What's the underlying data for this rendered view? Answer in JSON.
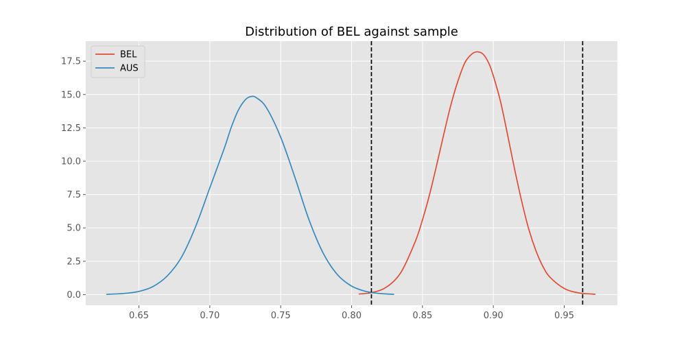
{
  "chart_data": {
    "type": "line",
    "title": "Distribution of BEL against sample",
    "xlabel": "",
    "ylabel": "",
    "xlim": [
      0.6125,
      0.9875
    ],
    "ylim": [
      -0.8,
      19.0
    ],
    "x_ticks": [
      0.65,
      0.7,
      0.75,
      0.8,
      0.85,
      0.9,
      0.95
    ],
    "x_tick_labels": [
      "0.65",
      "0.70",
      "0.75",
      "0.80",
      "0.85",
      "0.90",
      "0.95"
    ],
    "y_ticks": [
      0.0,
      2.5,
      5.0,
      7.5,
      10.0,
      12.5,
      15.0,
      17.5
    ],
    "y_tick_labels": [
      "0.0",
      "2.5",
      "5.0",
      "7.5",
      "10.0",
      "12.5",
      "15.0",
      "17.5"
    ],
    "grid": true,
    "legend_position": "top-left",
    "series": [
      {
        "name": "BEL",
        "color": "#E24A33",
        "x": [
          0.805,
          0.815,
          0.825,
          0.835,
          0.845,
          0.85,
          0.855,
          0.86,
          0.865,
          0.87,
          0.875,
          0.88,
          0.885,
          0.889,
          0.893,
          0.897,
          0.9,
          0.905,
          0.91,
          0.915,
          0.92,
          0.925,
          0.93,
          0.935,
          0.94,
          0.95,
          0.96,
          0.972
        ],
        "y": [
          0.04,
          0.17,
          0.59,
          1.7,
          4.0,
          5.6,
          7.5,
          9.7,
          12.0,
          14.2,
          16.0,
          17.4,
          18.05,
          18.2,
          18.0,
          17.3,
          16.4,
          14.5,
          12.0,
          9.4,
          7.0,
          4.9,
          3.3,
          2.1,
          1.3,
          0.46,
          0.13,
          0.03
        ]
      },
      {
        "name": "AUS",
        "color": "#348ABD",
        "x": [
          0.627,
          0.64,
          0.65,
          0.66,
          0.67,
          0.68,
          0.69,
          0.7,
          0.71,
          0.715,
          0.72,
          0.725,
          0.729,
          0.733,
          0.74,
          0.75,
          0.76,
          0.77,
          0.78,
          0.79,
          0.8,
          0.81,
          0.82,
          0.83
        ],
        "y": [
          0.02,
          0.09,
          0.24,
          0.61,
          1.4,
          2.8,
          5.1,
          8.0,
          10.9,
          12.5,
          13.8,
          14.6,
          14.85,
          14.75,
          14.0,
          11.8,
          8.8,
          5.6,
          3.1,
          1.5,
          0.64,
          0.24,
          0.08,
          0.02
        ]
      }
    ],
    "vlines": [
      0.814,
      0.963
    ]
  }
}
